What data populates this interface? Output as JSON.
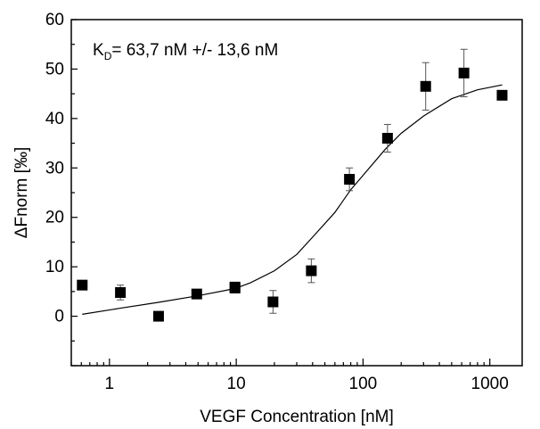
{
  "chart_data": {
    "type": "scatter",
    "xlabel": "VEGF Concentration [nM]",
    "ylabel": "ΔFnorm [‰]",
    "x_scale": "log",
    "xlim": [
      0.5,
      1800
    ],
    "ylim": [
      -10,
      60
    ],
    "x_ticks": [
      1,
      10,
      100,
      1000
    ],
    "x_tick_labels": [
      "1",
      "10",
      "100",
      "1000"
    ],
    "y_ticks": [
      0,
      10,
      20,
      30,
      40,
      50,
      60
    ],
    "y_tick_labels": [
      "0",
      "10",
      "20",
      "30",
      "40",
      "50",
      "60"
    ],
    "grid": false,
    "annotation": {
      "prefix": "K",
      "subscript": "D",
      "suffix": "= 63,7 nM +/- 13,6 nM"
    },
    "series": [
      {
        "marker": "square",
        "x": [
          0.61,
          1.22,
          2.44,
          4.88,
          9.77,
          9.77,
          19.5,
          39.1,
          78.1,
          156,
          312,
          625,
          1250
        ],
        "y": [
          6.3,
          4.8,
          0.0,
          4.5,
          5.9,
          5.7,
          2.9,
          9.2,
          27.7,
          36.0,
          46.5,
          49.2,
          44.7
        ],
        "err": [
          0,
          1.5,
          0,
          0,
          0.8,
          0,
          2.3,
          2.4,
          2.3,
          2.8,
          4.8,
          4.8,
          0
        ]
      }
    ],
    "fit": {
      "x": [
        0.61,
        1.2,
        2.4,
        4.9,
        9.8,
        13,
        20,
        30,
        40,
        60,
        80,
        100,
        150,
        200,
        300,
        500,
        800,
        1250
      ],
      "y": [
        0.4,
        1.6,
        2.8,
        4.1,
        5.6,
        6.8,
        9.2,
        12.5,
        16.0,
        21.0,
        25.6,
        28.5,
        33.8,
        37.0,
        40.5,
        44.0,
        45.8,
        46.8
      ]
    }
  }
}
